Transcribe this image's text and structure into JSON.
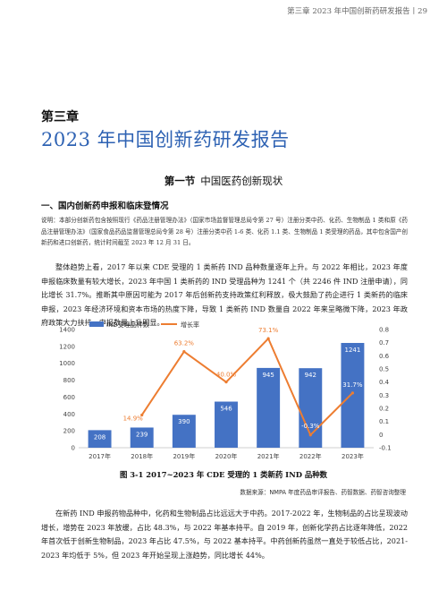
{
  "header": {
    "text": "第三章 2023 年中国创新药研发报告丨29"
  },
  "chapter": {
    "label": "第三章",
    "title": "2023 年中国创新药研发报告"
  },
  "section": {
    "number": "第一节",
    "title": "中国医药创新现状"
  },
  "subsection": {
    "title": "一、国内创新药申报和临床登情况"
  },
  "note": "说明：本部分创新药包含按照现行《药品注册管理办法》（国家市场监督管理总局令第 27 号）注册分类中药、化药、生物制品 1 类和原《药品注册管理办法》（国家食品药品监督管理总局令第 28 号）注册分类中药 1-6 类、化药 1.1 类、生物制品 1 类受理的药品，其中包含国产创新药和进口创新药，统计时间截至 2023 年 12 月 31 日。",
  "paragraph1": "整体趋势上看，2017 年以来 CDE 受理的 1 类新药 IND 品种数量逐年上升。与 2022 年相比，2023 年度申报临床数量有较大增长，2023 年中国 1 类新药的 IND 受理品种为 1241 个（共 2246 件 IND 注册申请），同比增长 31.7%。推断其中原因可能为 2017 年后创新药支持政策红利释放，极大鼓励了药企进行 1 类新药的临床申报，2023 年经济环境和资本市场的热度下降，导致 1 类新药 IND 数量自 2022 年来呈略微下降，2023 年政府政策大力扶持，申报数量上升明显。",
  "figure": {
    "caption": "图 3-1   2017~2023 年 CDE 受理的 1 类新药 IND 品种数",
    "source": "数据来源：NMPA 年度药品审评报告、药智数据、药智咨询整理"
  },
  "paragraph2": "在新药 IND 申报药物品种中，化药和生物制品占比远远大于中药。2017-2022 年，生物制品的占比呈现波动增长，增势在 2023 年放缓，占比 48.3%，与 2022 年基本持平。自 2019 年，创新化学药占比逐年降低，2022 年首次低于创新生物制品，2023 年占比 47.5%，与 2022 基本持平。中药创新药虽然一直处于较低占比，2021-2023 年均低于 5%，但 2023 年开始呈现上涨趋势，同比增长 44%。",
  "chart_data": {
    "type": "bar",
    "categories": [
      "2017年",
      "2018年",
      "2019年",
      "2020年",
      "2021年",
      "2022年",
      "2023年"
    ],
    "series": [
      {
        "name": "IND受理品种数",
        "kind": "bar",
        "axis": "left",
        "color": "#4472c4",
        "values": [
          208,
          239,
          390,
          546,
          945,
          942,
          1241
        ],
        "labels": [
          "208",
          "239",
          "390",
          "546",
          "945",
          "942",
          "1241"
        ]
      },
      {
        "name": "增长率",
        "kind": "line",
        "axis": "right",
        "color": "#ed7d31",
        "x": [
          "2018年",
          "2019年",
          "2020年",
          "2021年",
          "2022年",
          "2023年"
        ],
        "values": [
          0.149,
          0.632,
          0.4,
          0.731,
          -0.003,
          0.317
        ],
        "labels": [
          "14.9%",
          "63.2%",
          "40.0%",
          "73.1%",
          "-0.3%",
          "31.7%"
        ]
      }
    ],
    "ylim": [
      0,
      1400
    ],
    "yticks": [
      "0",
      "200",
      "400",
      "600",
      "800",
      "1000",
      "1200",
      "1400"
    ],
    "y2lim": [
      -0.1,
      0.8
    ],
    "y2ticks": [
      "-0.1",
      "0",
      "0.1",
      "0.2",
      "0.3",
      "0.4",
      "0.5",
      "0.6",
      "0.7",
      "0.8"
    ],
    "legend_position": "top-left",
    "grid": false
  }
}
